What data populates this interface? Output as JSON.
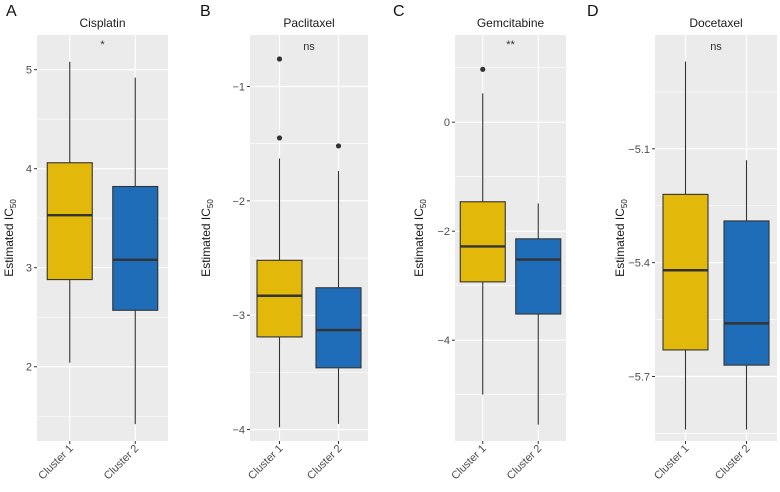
{
  "colors": {
    "cluster1": "#E2B80A",
    "cluster2": "#1F6DB8",
    "panel_bg": "#EBEBEB",
    "grid": "#FFFFFF",
    "line": "#333333"
  },
  "chart_data": [
    {
      "type": "box",
      "panel_label": "A",
      "title": "Cisplatin",
      "ylabel": "Estimated IC",
      "ylabel_sub": "50",
      "annotation": "*",
      "ylim": [
        1.25,
        5.35
      ],
      "yticks": [
        2,
        3,
        4,
        5
      ],
      "ytick_labels": [
        "2",
        "3",
        "4",
        "5"
      ],
      "categories": [
        "Cluster 1",
        "Cluster 2"
      ],
      "boxes": [
        {
          "name": "Cluster 1",
          "min": 2.04,
          "q1": 2.88,
          "median": 3.53,
          "q3": 4.06,
          "max": 5.08,
          "outliers": []
        },
        {
          "name": "Cluster 2",
          "min": 1.42,
          "q1": 2.57,
          "median": 3.08,
          "q3": 3.82,
          "max": 4.92,
          "outliers": []
        }
      ]
    },
    {
      "type": "box",
      "panel_label": "B",
      "title": "Paclitaxel",
      "ylabel": "Estimated IC",
      "ylabel_sub": "50",
      "annotation": "ns",
      "ylim": [
        -4.1,
        -0.55
      ],
      "yticks": [
        -4,
        -3,
        -2,
        -1
      ],
      "ytick_labels": [
        "−4",
        "−3",
        "−2",
        "−1"
      ],
      "categories": [
        "Cluster 1",
        "Cluster 2"
      ],
      "boxes": [
        {
          "name": "Cluster 1",
          "min": -3.98,
          "q1": -3.19,
          "median": -2.83,
          "q3": -2.52,
          "max": -1.63,
          "outliers": [
            -0.76,
            -1.45
          ]
        },
        {
          "name": "Cluster 2",
          "min": -3.95,
          "q1": -3.46,
          "median": -3.13,
          "q3": -2.76,
          "max": -1.74,
          "outliers": [
            -1.52
          ]
        }
      ]
    },
    {
      "type": "box",
      "panel_label": "C",
      "title": "Gemcitabine",
      "ylabel": "Estimated IC",
      "ylabel_sub": "50",
      "annotation": "**",
      "ylim": [
        -5.85,
        1.6
      ],
      "yticks": [
        -4,
        -2,
        0
      ],
      "ytick_labels": [
        "−4",
        "−2",
        "0"
      ],
      "categories": [
        "Cluster 1",
        "Cluster 2"
      ],
      "boxes": [
        {
          "name": "Cluster 1",
          "min": -5.0,
          "q1": -2.93,
          "median": -2.28,
          "q3": -1.46,
          "max": 0.53,
          "outliers": [
            0.97
          ]
        },
        {
          "name": "Cluster 2",
          "min": -5.55,
          "q1": -3.52,
          "median": -2.52,
          "q3": -2.14,
          "max": -1.49,
          "outliers": []
        }
      ]
    },
    {
      "type": "box",
      "panel_label": "D",
      "title": "Docetaxel",
      "ylabel": "Estimated IC",
      "ylabel_sub": "50",
      "annotation": "ns",
      "ylim": [
        -5.87,
        -4.8
      ],
      "yticks": [
        -5.7,
        -5.4,
        -5.1
      ],
      "ytick_labels": [
        "−5.7",
        "−5.4",
        "−5.1"
      ],
      "categories": [
        "Cluster 1",
        "Cluster 2"
      ],
      "boxes": [
        {
          "name": "Cluster 1",
          "min": -5.84,
          "q1": -5.63,
          "median": -5.42,
          "q3": -5.22,
          "max": -4.87,
          "outliers": []
        },
        {
          "name": "Cluster 2",
          "min": -5.84,
          "q1": -5.67,
          "median": -5.56,
          "q3": -5.29,
          "max": -5.13,
          "outliers": []
        }
      ]
    }
  ]
}
